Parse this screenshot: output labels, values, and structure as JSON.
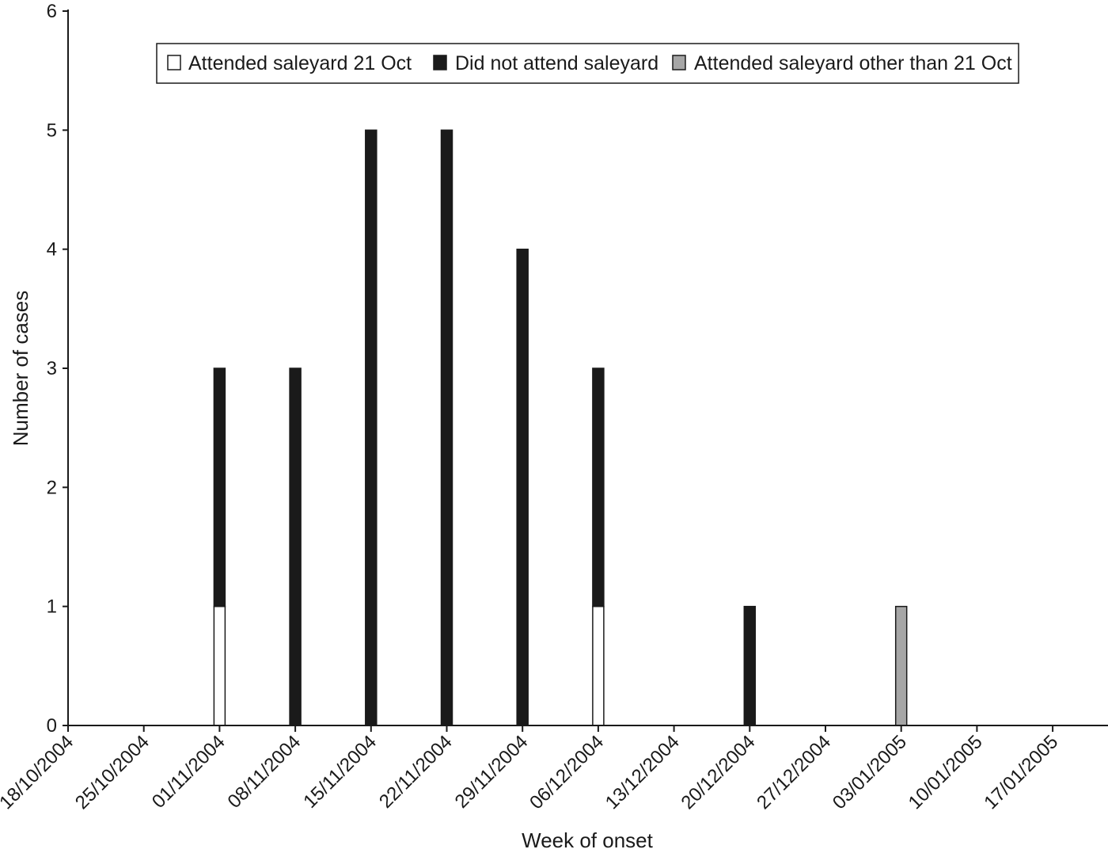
{
  "chart_data": {
    "type": "bar",
    "stacked": true,
    "title": "",
    "xlabel": "Week of onset",
    "ylabel": "Number of cases",
    "ylim": [
      0,
      6
    ],
    "yticks": [
      "0",
      "1",
      "2",
      "3",
      "4",
      "5",
      "6"
    ],
    "grid": false,
    "legend_position": "top-center",
    "categories": [
      "18/10/2004",
      "25/10/2004",
      "01/11/2004",
      "08/11/2004",
      "15/11/2004",
      "22/11/2004",
      "29/11/2004",
      "06/12/2004",
      "13/12/2004",
      "20/12/2004",
      "27/12/2004",
      "03/01/2005",
      "10/01/2005",
      "17/01/2005"
    ],
    "series": [
      {
        "name": "Attended saleyard 21 Oct",
        "color": "#ffffff",
        "values": [
          0,
          0,
          1,
          0,
          0,
          0,
          0,
          1,
          0,
          0,
          0,
          0,
          0,
          0
        ]
      },
      {
        "name": "Did not attend saleyard",
        "color": "#1a1a1a",
        "values": [
          0,
          0,
          2,
          3,
          5,
          5,
          4,
          2,
          0,
          1,
          0,
          0,
          0,
          0
        ]
      },
      {
        "name": "Attended saleyard other than 21 Oct",
        "color": "#a6a6a6",
        "values": [
          0,
          0,
          0,
          0,
          0,
          0,
          0,
          0,
          0,
          0,
          0,
          1,
          0,
          0
        ]
      }
    ]
  }
}
